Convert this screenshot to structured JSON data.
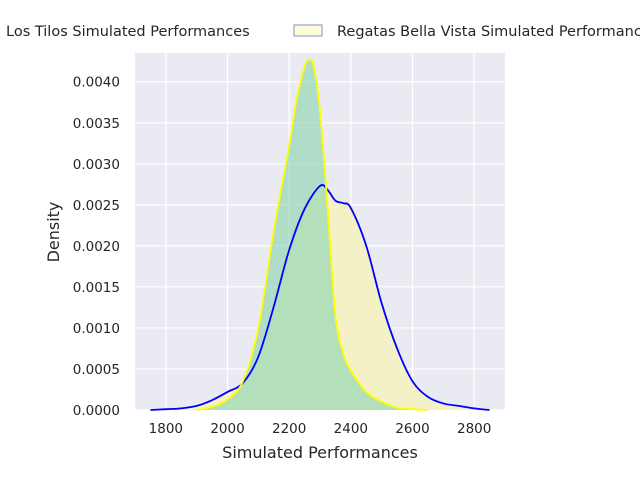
{
  "chart_data": {
    "type": "area",
    "xlabel": "Simulated Performances",
    "ylabel": "Density",
    "xlim": [
      1700,
      2900
    ],
    "ylim": [
      0,
      0.00435
    ],
    "x_ticks": [
      1800,
      2000,
      2200,
      2400,
      2600,
      2800
    ],
    "y_ticks": [
      0.0,
      0.0005,
      0.001,
      0.0015,
      0.002,
      0.0025,
      0.003,
      0.0035,
      0.004
    ],
    "y_tick_labels": [
      "0.0000",
      "0.0005",
      "0.0010",
      "0.0015",
      "0.0020",
      "0.0025",
      "0.0030",
      "0.0035",
      "0.0040"
    ],
    "legend_position": "top",
    "series": [
      {
        "name": "Los Tilos Simulated Performances",
        "line_color": "#0000ff",
        "fill_color": "#f4f1c6",
        "x": [
          1750,
          1800,
          1850,
          1900,
          1950,
          2000,
          2050,
          2100,
          2150,
          2200,
          2250,
          2300,
          2325,
          2350,
          2375,
          2400,
          2450,
          2500,
          2550,
          2600,
          2650,
          2700,
          2750,
          2800,
          2850
        ],
        "values": [
          0.0,
          1e-05,
          2e-05,
          5e-05,
          0.00012,
          0.00022,
          0.00033,
          0.00065,
          0.00126,
          0.00195,
          0.00245,
          0.00273,
          0.00268,
          0.00255,
          0.00252,
          0.00246,
          0.002,
          0.0013,
          0.00075,
          0.00035,
          0.00016,
          8e-05,
          5e-05,
          2e-05,
          0.0
        ]
      },
      {
        "name": "Regatas Bella Vista Simulated Performances",
        "line_color": "#ffff00",
        "fill_color": "#9ad8b5",
        "x": [
          1900,
          1950,
          2000,
          2050,
          2100,
          2150,
          2200,
          2225,
          2250,
          2265,
          2280,
          2300,
          2325,
          2350,
          2375,
          2400,
          2450,
          2500,
          2550,
          2600,
          2650
        ],
        "values": [
          0.0,
          4e-05,
          0.00013,
          0.00035,
          0.001,
          0.00218,
          0.00322,
          0.0038,
          0.00418,
          0.00427,
          0.00418,
          0.00365,
          0.00245,
          0.00115,
          0.0007,
          0.00048,
          0.00022,
          0.0001,
          3e-05,
          1e-05,
          0.0
        ]
      }
    ]
  }
}
